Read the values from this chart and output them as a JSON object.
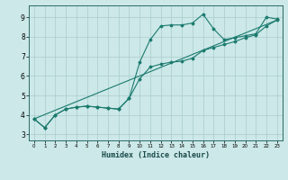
{
  "xlabel": "Humidex (Indice chaleur)",
  "ylabel": "",
  "xlim": [
    -0.5,
    23.5
  ],
  "ylim": [
    2.7,
    9.6
  ],
  "xticks": [
    0,
    1,
    2,
    3,
    4,
    5,
    6,
    7,
    8,
    9,
    10,
    11,
    12,
    13,
    14,
    15,
    16,
    17,
    18,
    19,
    20,
    21,
    22,
    23
  ],
  "yticks": [
    3,
    4,
    5,
    6,
    7,
    8,
    9
  ],
  "bg_color": "#cce8e8",
  "line_color": "#1a7a6e",
  "grid_color": "#aacccc",
  "curve1_x": [
    0,
    1,
    2,
    3,
    4,
    5,
    6,
    7,
    8,
    9,
    10,
    11,
    12,
    13,
    14,
    15,
    16,
    17,
    18,
    19,
    20,
    21,
    22,
    23
  ],
  "curve1_y": [
    3.8,
    3.35,
    4.0,
    4.3,
    4.4,
    4.45,
    4.4,
    4.35,
    4.3,
    4.85,
    6.7,
    7.85,
    8.55,
    8.6,
    8.6,
    8.7,
    9.15,
    8.4,
    7.85,
    7.95,
    8.05,
    8.15,
    9.0,
    8.9
  ],
  "curve2_x": [
    0,
    1,
    2,
    3,
    4,
    5,
    6,
    7,
    8,
    9,
    10,
    11,
    12,
    13,
    14,
    15,
    16,
    17,
    18,
    19,
    20,
    21,
    22,
    23
  ],
  "curve2_y": [
    3.8,
    3.35,
    4.0,
    4.3,
    4.4,
    4.45,
    4.4,
    4.35,
    4.3,
    4.85,
    5.85,
    6.45,
    6.6,
    6.7,
    6.75,
    6.9,
    7.3,
    7.45,
    7.6,
    7.75,
    7.95,
    8.1,
    8.55,
    8.85
  ],
  "curve3_x": [
    0,
    23
  ],
  "curve3_y": [
    3.8,
    8.85
  ]
}
